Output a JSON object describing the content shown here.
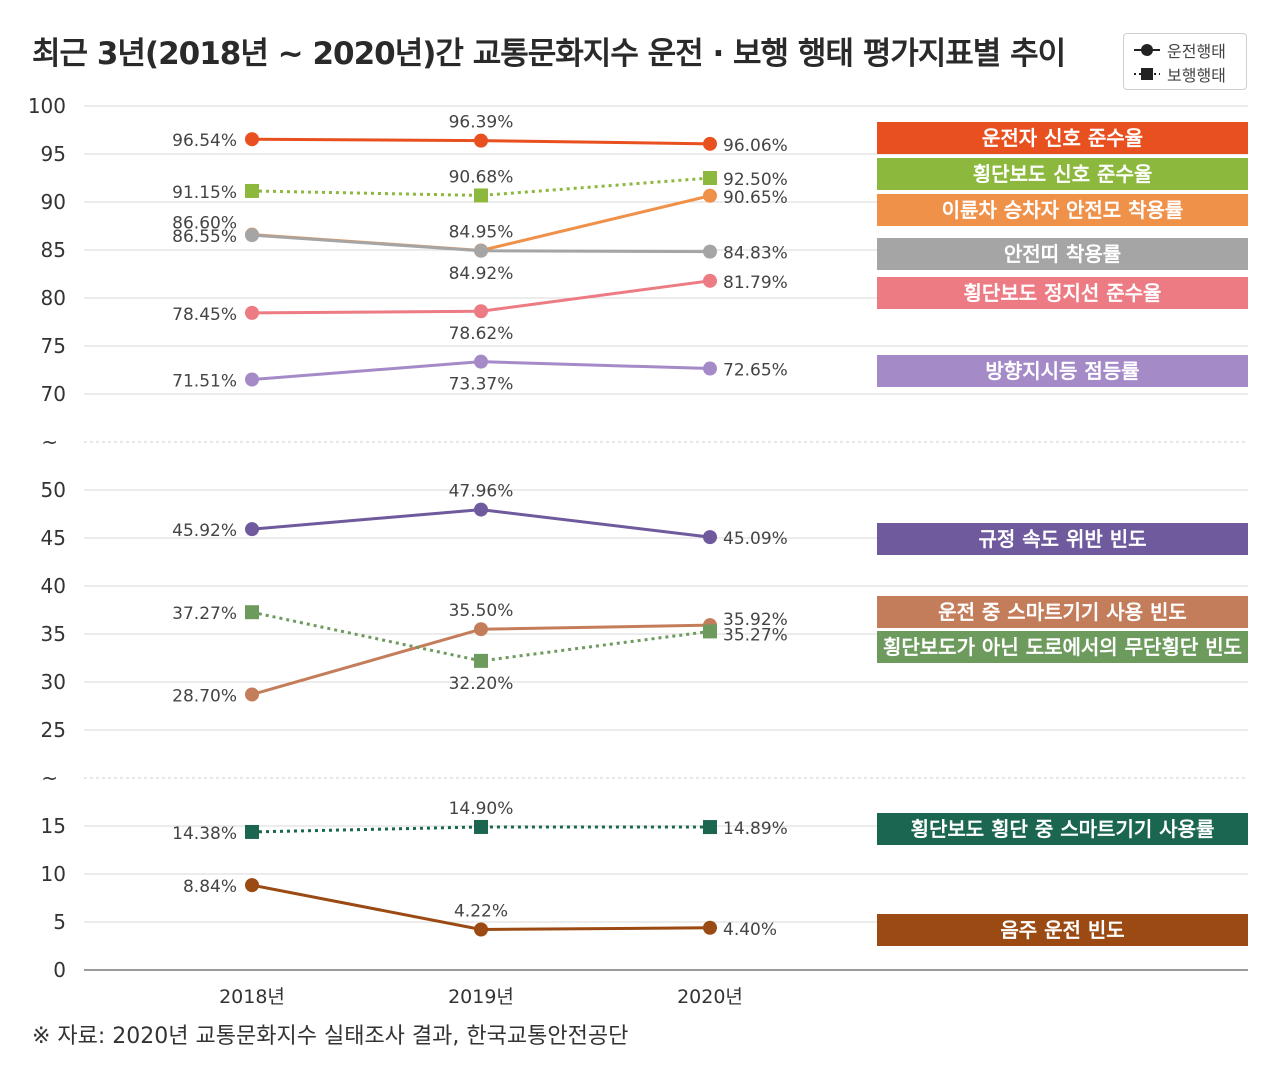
{
  "title": "최근 3년(2018년 ~ 2020년)간 교통문화지수 운전 · 보행 행태 평가지표별 추이",
  "source": "※ 자료: 2020년 교통문화지수 실태조사 결과, 한국교통안전공단",
  "legend": [
    {
      "label": "운전행태",
      "marker": "circle",
      "dash": "solid"
    },
    {
      "label": "보행행태",
      "marker": "square",
      "dash": "dotted"
    }
  ],
  "chart_data": {
    "type": "line",
    "title": "최근 3년(2018년 ~ 2020년)간 교통문화지수 운전 · 보행 행태 평가지표별 추이",
    "xlabel": "",
    "ylabel": "",
    "categories": [
      "2018년",
      "2019년",
      "2020년"
    ],
    "y_axis_breaks": [
      "~",
      "~"
    ],
    "y_segments": [
      {
        "range": [
          70,
          100
        ],
        "ticks": [
          100,
          95,
          90,
          85,
          80,
          75,
          70
        ]
      },
      {
        "range": [
          25,
          50
        ],
        "ticks": [
          50,
          45,
          40,
          35,
          30,
          25
        ]
      },
      {
        "range": [
          0,
          15
        ],
        "ticks": [
          15,
          10,
          5,
          0
        ]
      }
    ],
    "grid": true,
    "legend_position": "top-right",
    "series": [
      {
        "name": "운전자 신호 준수율",
        "type": "운전행태",
        "color": "#E8501F",
        "values": [
          96.54,
          96.39,
          96.06
        ],
        "labels": [
          "96.54%",
          "96.39%",
          "96.06%"
        ]
      },
      {
        "name": "횡단보도 신호 준수율",
        "type": "보행행태",
        "color": "#8DB83E",
        "values": [
          91.15,
          90.68,
          92.5
        ],
        "labels": [
          "91.15%",
          "90.68%",
          "92.50%"
        ]
      },
      {
        "name": "이륜차 승차자 안전모 착용률",
        "type": "운전행태",
        "color": "#F0914A",
        "values": [
          86.6,
          84.95,
          90.65
        ],
        "labels": [
          "86.60%",
          "84.95%",
          "90.65%"
        ]
      },
      {
        "name": "안전띠 착용률",
        "type": "운전행태",
        "color": "#A5A5A5",
        "values": [
          86.55,
          84.92,
          84.83
        ],
        "labels": [
          "86.55%",
          "84.92%",
          "84.83%"
        ]
      },
      {
        "name": "횡단보도 정지선 준수율",
        "type": "운전행태",
        "color": "#EC7B84",
        "values": [
          78.45,
          78.62,
          81.79
        ],
        "labels": [
          "78.45%",
          "78.62%",
          "81.79%"
        ]
      },
      {
        "name": "방향지시등 점등률",
        "type": "운전행태",
        "color": "#A58AC8",
        "values": [
          71.51,
          73.37,
          72.65
        ],
        "labels": [
          "71.51%",
          "73.37%",
          "72.65%"
        ]
      },
      {
        "name": "규정 속도 위반 빈도",
        "type": "운전행태",
        "color": "#6E5A9C",
        "values": [
          45.92,
          47.96,
          45.09
        ],
        "labels": [
          "45.92%",
          "47.96%",
          "45.09%"
        ]
      },
      {
        "name": "운전 중 스마트기기 사용 빈도",
        "type": "운전행태",
        "color": "#C47D5A",
        "values": [
          28.7,
          35.5,
          35.92
        ],
        "labels": [
          "28.70%",
          "35.50%",
          "35.92%"
        ]
      },
      {
        "name": "횡단보도가 아닌 도로에서의 무단횡단 빈도",
        "type": "보행행태",
        "color": "#6D9A5D",
        "values": [
          37.27,
          32.2,
          35.27
        ],
        "labels": [
          "37.27%",
          "32.20%",
          "35.27%"
        ]
      },
      {
        "name": "횡단보도 횡단 중 스마트기기 사용률",
        "type": "보행행태",
        "color": "#1B6650",
        "values": [
          14.38,
          14.9,
          14.89
        ],
        "labels": [
          "14.38%",
          "14.90%",
          "14.89%"
        ]
      },
      {
        "name": "음주 운전 빈도",
        "type": "운전행태",
        "color": "#9A4A12",
        "values": [
          8.84,
          4.22,
          4.4
        ],
        "labels": [
          "8.84%",
          "4.22%",
          "4.40%"
        ]
      }
    ]
  }
}
